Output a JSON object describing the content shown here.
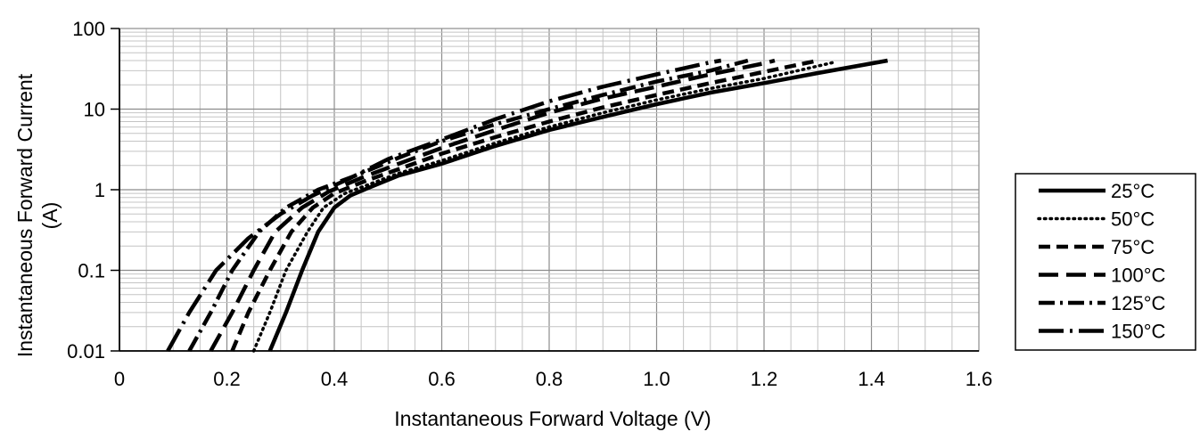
{
  "chart_data": {
    "type": "line",
    "xlabel": "Instantaneous Forward Voltage (V)",
    "ylabel_line1": "Instantaneous Forward Current",
    "ylabel_line2": "(A)",
    "xlim": [
      0,
      1.6
    ],
    "ylim": [
      0.01,
      100
    ],
    "yscale": "log",
    "grid": true,
    "legend_position": "right",
    "x_ticks": [
      "0",
      "0.2",
      "0.4",
      "0.6",
      "0.8",
      "1.0",
      "1.2",
      "1.4",
      "1.6"
    ],
    "y_ticks": [
      "0.01",
      "0.1",
      "1",
      "10",
      "100"
    ],
    "series": [
      {
        "name": "25°C",
        "style": "solid",
        "points": [
          [
            0.28,
            0.01
          ],
          [
            0.31,
            0.03
          ],
          [
            0.34,
            0.1
          ],
          [
            0.37,
            0.3
          ],
          [
            0.4,
            0.6
          ],
          [
            0.43,
            0.85
          ],
          [
            0.47,
            1.1
          ],
          [
            0.52,
            1.5
          ],
          [
            0.6,
            2.1
          ],
          [
            0.7,
            3.5
          ],
          [
            0.8,
            5.5
          ],
          [
            0.9,
            8
          ],
          [
            1.0,
            11.5
          ],
          [
            1.1,
            16
          ],
          [
            1.2,
            21
          ],
          [
            1.3,
            28
          ],
          [
            1.43,
            40
          ]
        ]
      },
      {
        "name": "50°C",
        "style": "dotted",
        "points": [
          [
            0.25,
            0.01
          ],
          [
            0.28,
            0.03
          ],
          [
            0.31,
            0.1
          ],
          [
            0.35,
            0.3
          ],
          [
            0.38,
            0.6
          ],
          [
            0.42,
            0.9
          ],
          [
            0.47,
            1.2
          ],
          [
            0.52,
            1.6
          ],
          [
            0.6,
            2.3
          ],
          [
            0.7,
            3.8
          ],
          [
            0.8,
            6
          ],
          [
            0.9,
            9
          ],
          [
            1.0,
            13
          ],
          [
            1.1,
            18
          ],
          [
            1.2,
            24
          ],
          [
            1.33,
            38
          ]
        ]
      },
      {
        "name": "75°C",
        "style": "dashed",
        "points": [
          [
            0.21,
            0.01
          ],
          [
            0.24,
            0.03
          ],
          [
            0.28,
            0.1
          ],
          [
            0.32,
            0.3
          ],
          [
            0.36,
            0.6
          ],
          [
            0.4,
            0.9
          ],
          [
            0.46,
            1.3
          ],
          [
            0.52,
            1.8
          ],
          [
            0.6,
            2.8
          ],
          [
            0.7,
            4.5
          ],
          [
            0.8,
            7
          ],
          [
            0.9,
            10.5
          ],
          [
            1.0,
            15
          ],
          [
            1.1,
            21
          ],
          [
            1.2,
            29
          ],
          [
            1.3,
            40
          ]
        ]
      },
      {
        "name": "100°C",
        "style": "long-dash",
        "points": [
          [
            0.17,
            0.01
          ],
          [
            0.21,
            0.03
          ],
          [
            0.25,
            0.1
          ],
          [
            0.29,
            0.3
          ],
          [
            0.34,
            0.6
          ],
          [
            0.39,
            0.95
          ],
          [
            0.45,
            1.4
          ],
          [
            0.52,
            2.1
          ],
          [
            0.6,
            3.3
          ],
          [
            0.7,
            5.5
          ],
          [
            0.8,
            9
          ],
          [
            0.9,
            13.5
          ],
          [
            1.0,
            19
          ],
          [
            1.1,
            27
          ],
          [
            1.2,
            37
          ],
          [
            1.22,
            40
          ]
        ]
      },
      {
        "name": "125°C",
        "style": "dash-dot",
        "points": [
          [
            0.13,
            0.01
          ],
          [
            0.17,
            0.03
          ],
          [
            0.21,
            0.1
          ],
          [
            0.26,
            0.3
          ],
          [
            0.31,
            0.6
          ],
          [
            0.37,
            1.0
          ],
          [
            0.44,
            1.5
          ],
          [
            0.52,
            2.5
          ],
          [
            0.6,
            4
          ],
          [
            0.7,
            6.5
          ],
          [
            0.8,
            10
          ],
          [
            0.9,
            15
          ],
          [
            1.0,
            22
          ],
          [
            1.1,
            30
          ],
          [
            1.17,
            40
          ]
        ]
      },
      {
        "name": "150°C",
        "style": "long-dash-dot",
        "points": [
          [
            0.09,
            0.01
          ],
          [
            0.13,
            0.03
          ],
          [
            0.18,
            0.1
          ],
          [
            0.24,
            0.25
          ],
          [
            0.3,
            0.5
          ],
          [
            0.36,
            0.85
          ],
          [
            0.43,
            1.4
          ],
          [
            0.5,
            2.4
          ],
          [
            0.6,
            4.2
          ],
          [
            0.7,
            7.5
          ],
          [
            0.8,
            12.5
          ],
          [
            0.9,
            19
          ],
          [
            1.0,
            27
          ],
          [
            1.1,
            38
          ],
          [
            1.12,
            40
          ]
        ]
      }
    ]
  }
}
